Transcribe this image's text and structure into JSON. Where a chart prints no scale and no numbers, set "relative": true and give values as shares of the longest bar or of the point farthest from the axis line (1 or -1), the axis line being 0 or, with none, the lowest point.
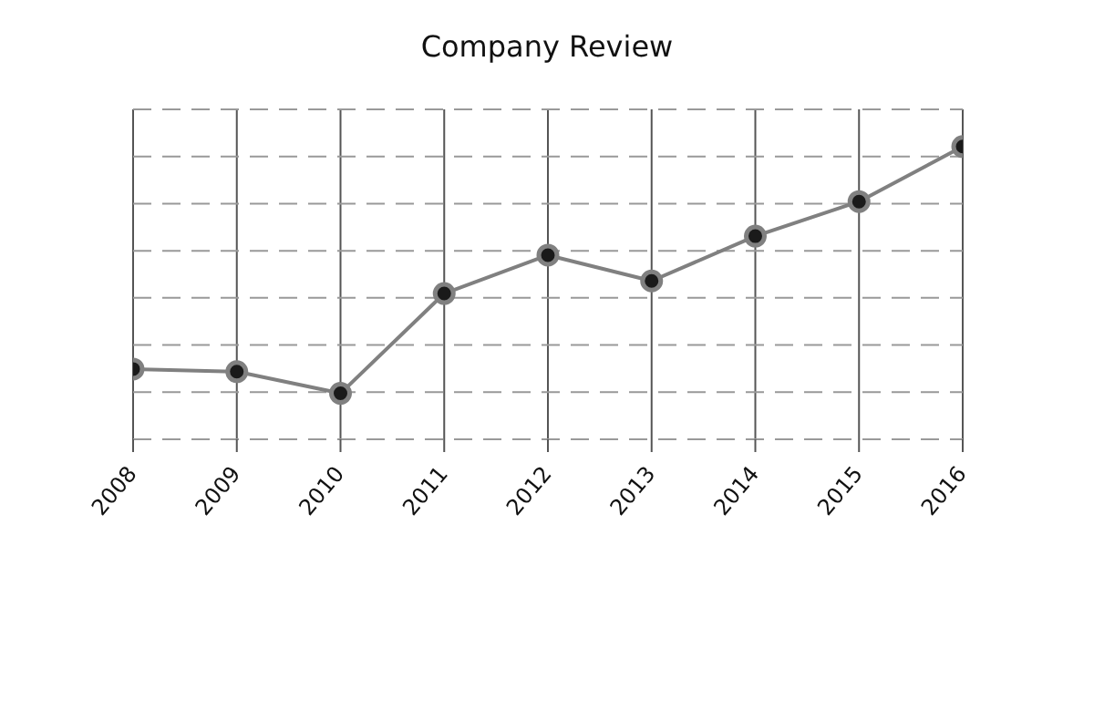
{
  "chart_data": {
    "type": "line",
    "title": "Company Review",
    "relative": true,
    "categories": [
      "2008",
      "2009",
      "2010",
      "2011",
      "2012",
      "2013",
      "2014",
      "2015",
      "2016"
    ],
    "series": [
      {
        "color": "#808080",
        "values": [
          0.24,
          0.231,
          0.157,
          0.498,
          0.629,
          0.541,
          0.694,
          0.812,
          1
        ]
      }
    ],
    "grid": true,
    "marker": "circle",
    "line_style": "solid"
  }
}
